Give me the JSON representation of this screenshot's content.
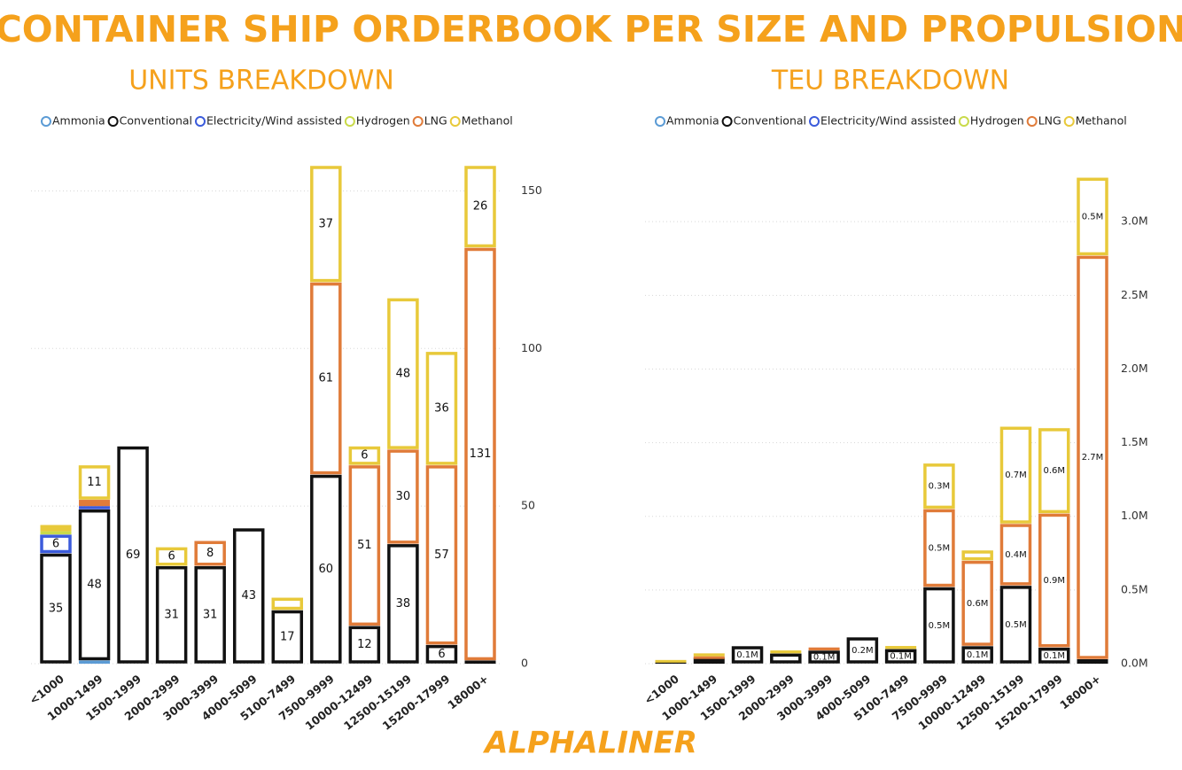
{
  "title": "CONTAINER SHIP ORDERBOOK PER SIZE AND PROPULSION",
  "footer": "ALPHALINER",
  "chart_data": [
    {
      "type": "stacked-bar",
      "title": "UNITS BREAKDOWN",
      "categories": [
        "<1000",
        "1000-1499",
        "1500-1999",
        "2000-2999",
        "3000-3999",
        "4000-5099",
        "5100-7499",
        "7500-9999",
        "10000-12499",
        "12500-15199",
        "15200-17999",
        "18000+"
      ],
      "series": [
        {
          "name": "Ammonia",
          "color": "#5b9bd5",
          "values": [
            0,
            1,
            0,
            0,
            0,
            0,
            0,
            0,
            0,
            0,
            0,
            0
          ]
        },
        {
          "name": "Conventional",
          "color": "#111111",
          "values": [
            35,
            48,
            69,
            31,
            31,
            43,
            17,
            60,
            12,
            38,
            6,
            1
          ]
        },
        {
          "name": "Electricity/Wind assisted",
          "color": "#3b5bdb",
          "values": [
            6,
            1,
            0,
            0,
            0,
            0,
            0,
            0,
            0,
            0,
            0,
            0
          ]
        },
        {
          "name": "Hydrogen",
          "color": "#c9da4a",
          "values": [
            1,
            0,
            0,
            0,
            0,
            0,
            0,
            0,
            0,
            0,
            0,
            0
          ]
        },
        {
          "name": "LNG",
          "color": "#e07b39",
          "values": [
            0,
            2,
            0,
            0,
            8,
            0,
            0,
            61,
            51,
            30,
            57,
            131
          ]
        },
        {
          "name": "Methanol",
          "color": "#e8c93a",
          "values": [
            2,
            11,
            0,
            6,
            0,
            0,
            4,
            37,
            6,
            48,
            36,
            26
          ]
        }
      ],
      "ylim": [
        0,
        158
      ],
      "yticks": [
        0,
        50,
        100,
        150
      ],
      "grid": true
    },
    {
      "type": "stacked-bar",
      "title": "TEU BREAKDOWN",
      "categories": [
        "<1000",
        "1000-1499",
        "1500-1999",
        "2000-2999",
        "3000-3999",
        "4000-5099",
        "5100-7499",
        "7500-9999",
        "10000-12499",
        "12500-15199",
        "15200-17999",
        "18000+"
      ],
      "series": [
        {
          "name": "Ammonia",
          "color": "#5b9bd5",
          "values": [
            0,
            0,
            0,
            0,
            0,
            0,
            0,
            0,
            0,
            0,
            0,
            0
          ]
        },
        {
          "name": "Conventional",
          "color": "#111111",
          "values": [
            0.02,
            0.04,
            0.12,
            0.07,
            0.09,
            0.18,
            0.1,
            0.52,
            0.12,
            0.53,
            0.11,
            0.03
          ],
          "value_labels": [
            null,
            null,
            "0.1M",
            null,
            "0.1M",
            "0.2M",
            "0.1M",
            "0.5M",
            "0.1M",
            "0.5M",
            "0.1M",
            null
          ]
        },
        {
          "name": "Electricity/Wind assisted",
          "color": "#3b5bdb",
          "values": [
            0,
            0,
            0,
            0,
            0,
            0,
            0,
            0,
            0,
            0,
            0,
            0
          ]
        },
        {
          "name": "Hydrogen",
          "color": "#c9da4a",
          "values": [
            0,
            0,
            0,
            0,
            0,
            0,
            0,
            0,
            0,
            0,
            0,
            0
          ]
        },
        {
          "name": "LNG",
          "color": "#e07b39",
          "values": [
            0,
            0.01,
            0,
            0,
            0.02,
            0,
            0,
            0.53,
            0.58,
            0.42,
            0.91,
            2.74
          ],
          "value_labels": [
            null,
            null,
            null,
            null,
            null,
            null,
            null,
            "0.5M",
            "0.6M",
            "0.4M",
            "0.9M",
            "2.7M"
          ]
        },
        {
          "name": "Methanol",
          "color": "#e8c93a",
          "values": [
            0.005,
            0.02,
            0,
            0.02,
            0,
            0,
            0.02,
            0.31,
            0.07,
            0.66,
            0.58,
            0.53
          ],
          "value_labels": [
            null,
            null,
            null,
            null,
            null,
            null,
            null,
            "0.3M",
            null,
            "0.7M",
            "0.6M",
            "0.5M"
          ]
        }
      ],
      "ylim": [
        0,
        3.38
      ],
      "yticks": [
        {
          "value": 0,
          "label": "0.0M"
        },
        {
          "value": 0.5,
          "label": "0.5M"
        },
        {
          "value": 1,
          "label": "1.0M"
        },
        {
          "value": 1.5,
          "label": "1.5M"
        },
        {
          "value": 2,
          "label": "2.0M"
        },
        {
          "value": 2.5,
          "label": "2.5M"
        },
        {
          "value": 3,
          "label": "3.0M"
        }
      ],
      "grid": true
    }
  ]
}
